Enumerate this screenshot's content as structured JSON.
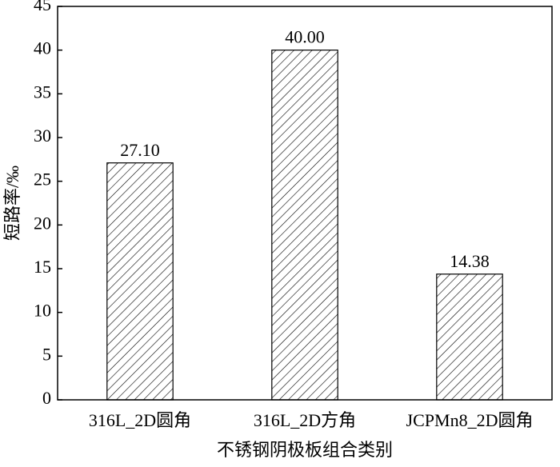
{
  "chart_data": {
    "type": "bar",
    "xlabel": "不锈钢阴极板组合类别",
    "ylabel": "短路率/‰",
    "categories": [
      "316L_2D圆角",
      "316L_2D方角",
      "JCPMn8_2D圆角"
    ],
    "values": [
      27.1,
      40,
      14.38
    ],
    "value_labels": [
      "27.10",
      "40.00",
      "14.38"
    ],
    "color": "#000000",
    "hatch": true,
    "ylim": [
      0,
      45
    ],
    "yticks": [
      0,
      5,
      10,
      15,
      20,
      25,
      30,
      35,
      40,
      45
    ]
  }
}
